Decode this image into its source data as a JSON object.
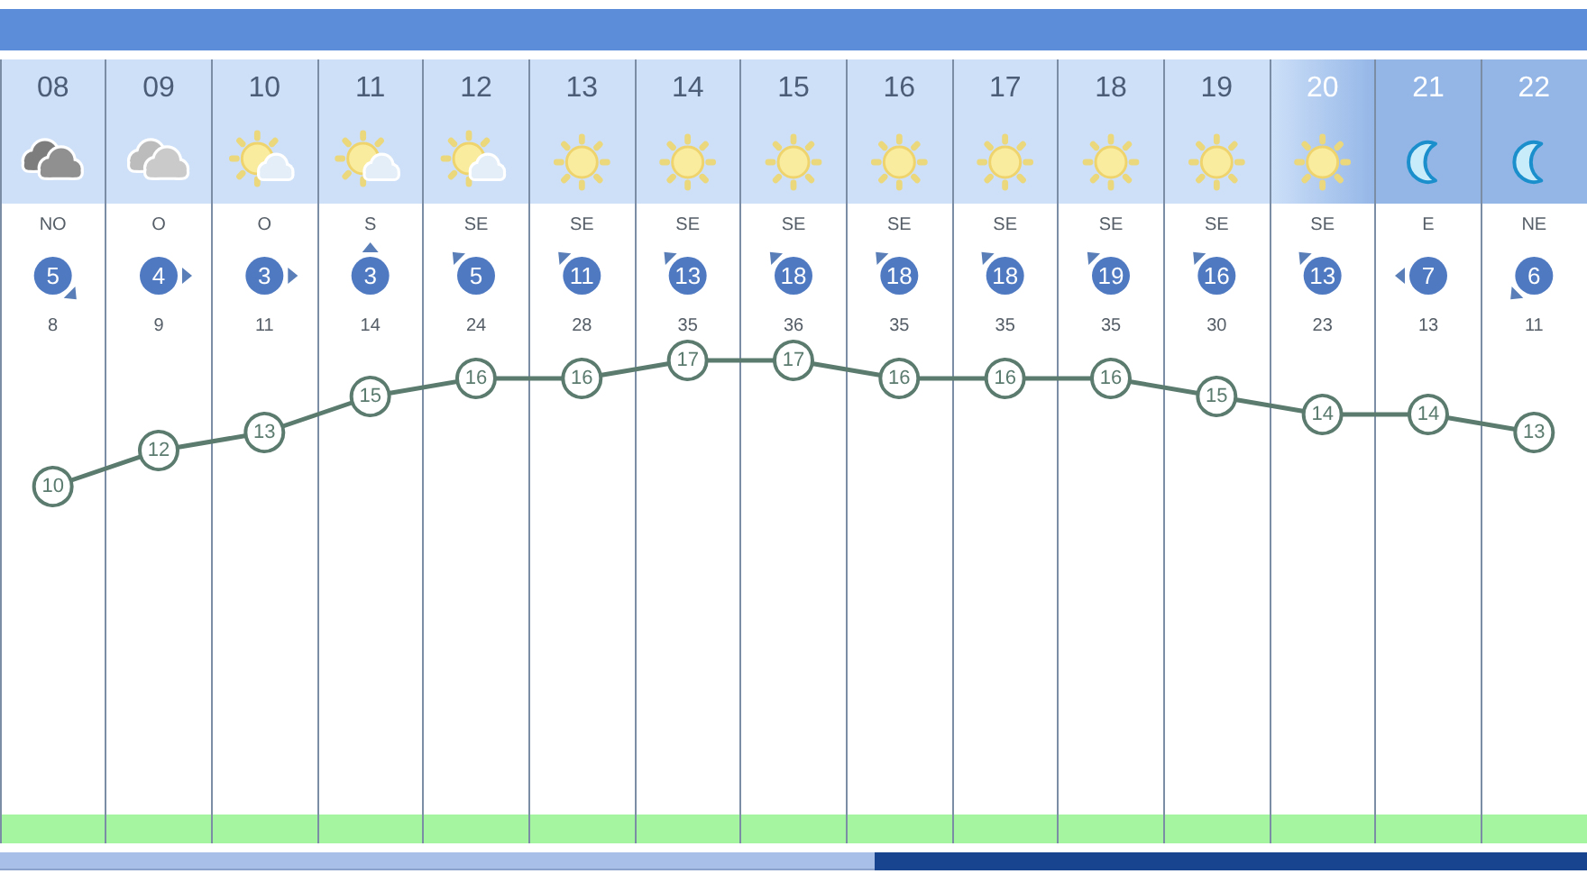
{
  "chart_data": {
    "type": "line",
    "categories": [
      "08",
      "09",
      "10",
      "11",
      "12",
      "13",
      "14",
      "15",
      "16",
      "17",
      "18",
      "19",
      "20",
      "21",
      "22"
    ],
    "values": [
      10,
      12,
      13,
      15,
      16,
      16,
      17,
      17,
      16,
      16,
      16,
      15,
      14,
      14,
      13
    ],
    "color": "#5b7b6f",
    "data_labels": true,
    "marker": "circle",
    "line_style": "solid",
    "grid": "x",
    "tick_labels": "x",
    "annotations": [
      "NO",
      "5",
      "8",
      "O",
      "4",
      "9",
      "O",
      "3",
      "11",
      "S",
      "3",
      "14",
      "SE",
      "5",
      "24",
      "SE",
      "11",
      "28",
      "SE",
      "13",
      "35",
      "SE",
      "18",
      "36",
      "SE",
      "18",
      "35",
      "SE",
      "18",
      "35",
      "SE",
      "19",
      "35",
      "SE",
      "16",
      "30",
      "SE",
      "13",
      "23",
      "E",
      "7",
      "13",
      "NE",
      "6",
      "11"
    ]
  }
}
